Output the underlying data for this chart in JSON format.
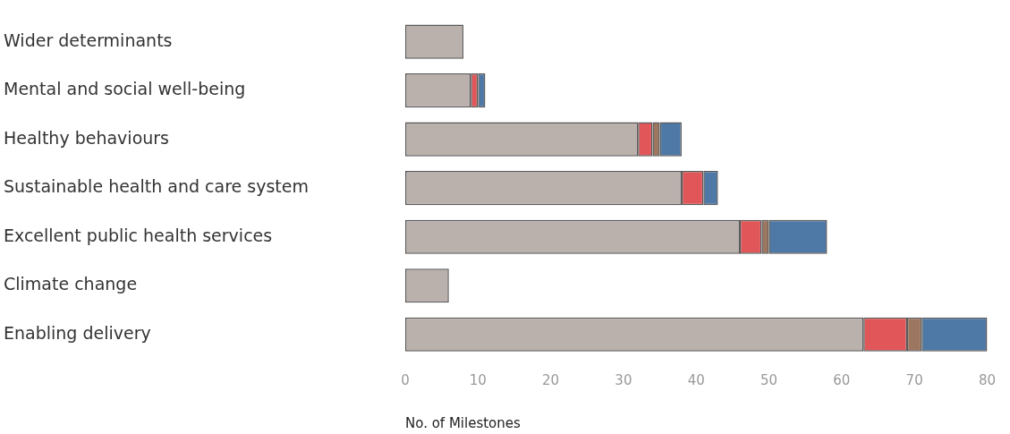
{
  "chart_data": {
    "type": "bar",
    "orientation": "horizontal",
    "stacked": true,
    "xlabel": "No. of Milestones",
    "categories": [
      "Wider determinants",
      "Mental and social well-being",
      "Healthy behaviours",
      "Sustainable health and care system",
      "Excellent public health services",
      "Climate change",
      "Enabling delivery"
    ],
    "series": [
      {
        "color": "#bab0ac",
        "values": [
          8,
          9,
          32,
          38,
          46,
          6,
          63
        ]
      },
      {
        "color": "#e15759",
        "values": [
          0,
          1,
          2,
          3,
          3,
          0,
          6
        ]
      },
      {
        "color": "#9d7660",
        "values": [
          0,
          0,
          1,
          0,
          1,
          0,
          2
        ]
      },
      {
        "color": "#4e79a7",
        "values": [
          0,
          1,
          3,
          2,
          8,
          0,
          9
        ]
      }
    ],
    "xlim": [
      0,
      80
    ],
    "xticks": [
      0,
      10,
      20,
      30,
      40,
      50,
      60,
      70,
      80
    ],
    "grid": false,
    "legend": false
  }
}
